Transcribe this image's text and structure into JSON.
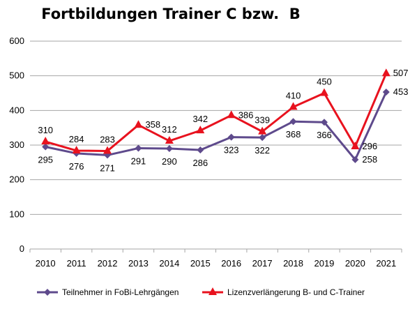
{
  "chart_data": {
    "type": "line",
    "title": "Fortbildungen Trainer C bzw.  B",
    "categories": [
      "2010",
      "2011",
      "2012",
      "2013",
      "2014",
      "2015",
      "2016",
      "2017",
      "2018",
      "2019",
      "2020",
      "2021"
    ],
    "ylim": [
      0,
      600
    ],
    "yticks": [
      0,
      100,
      200,
      300,
      400,
      500,
      600
    ],
    "grid": true,
    "legend_position": "bottom",
    "series": [
      {
        "name": "Teilnehmer in FoBi-Lehrgängen",
        "color": "#5e4a8c",
        "marker": "diamond",
        "values": [
          295,
          276,
          271,
          291,
          290,
          286,
          323,
          322,
          368,
          366,
          258,
          453
        ],
        "label_position": [
          "below",
          "below",
          "below",
          "below",
          "below",
          "below",
          "below",
          "below",
          "below",
          "below",
          "right",
          "right"
        ]
      },
      {
        "name": "Lizenzverlängerung B- und C-Trainer",
        "color": "#e8121e",
        "marker": "triangle",
        "values": [
          310,
          284,
          283,
          358,
          312,
          342,
          386,
          339,
          410,
          450,
          296,
          507
        ],
        "label_position": [
          "above",
          "above",
          "above",
          "right",
          "above",
          "above",
          "right",
          "above",
          "above",
          "above",
          "right",
          "right"
        ]
      }
    ]
  }
}
